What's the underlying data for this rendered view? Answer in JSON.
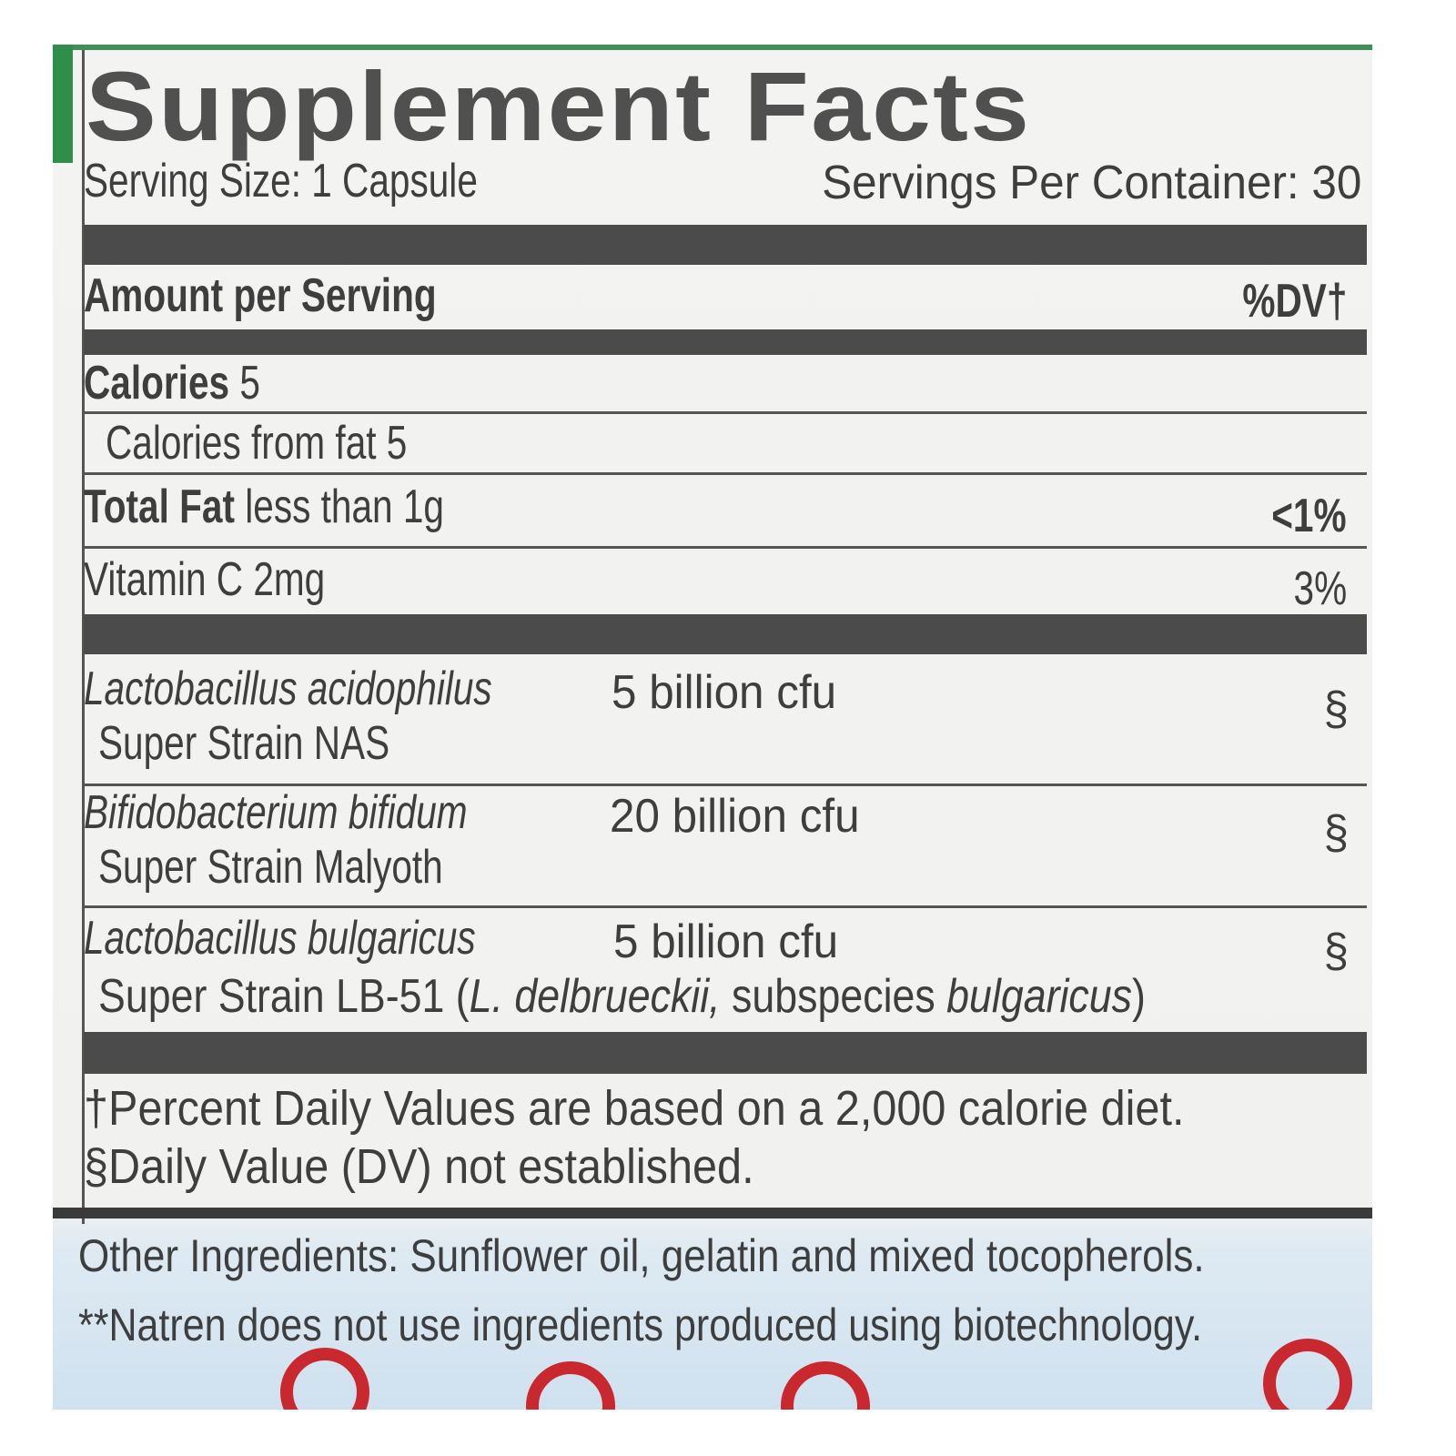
{
  "title": "Supplement Facts",
  "serving_size": "Serving Size: 1 Capsule",
  "servings_per_container": "Servings Per Container: 30",
  "header": {
    "amount_label": "Amount per Serving",
    "dv_label": "%DV†"
  },
  "nutrients": [
    {
      "bold": "Calories",
      "rest": " 5",
      "dv": ""
    },
    {
      "bold": "",
      "rest": "Calories from fat 5",
      "dv": ""
    },
    {
      "bold": "Total Fat",
      "rest": " less than 1g",
      "dv": "<1%"
    },
    {
      "bold": "",
      "rest": "Vitamin C 2mg",
      "dv": "3%"
    }
  ],
  "probiotics": [
    {
      "name": "Lactobacillus acidophilus",
      "strain": "Super Strain NAS",
      "amount": "5 billion cfu",
      "dv": "§"
    },
    {
      "name": "Bifidobacterium bifidum",
      "strain": "Super Strain Malyoth",
      "amount": "20 billion cfu",
      "dv": "§"
    },
    {
      "name": "Lactobacillus bulgaricus",
      "strain": "Super Strain LB-51 (",
      "strain_italic": "L. delbrueckii,",
      "strain_mid": " subspecies ",
      "strain_italic2": "bulgaricus",
      "strain_end": ")",
      "amount": "5 billion cfu",
      "dv": "§"
    }
  ],
  "footnotes": [
    "†Percent Daily Values are based on a 2,000 calorie diet.",
    "§Daily Value (DV) not established."
  ],
  "other_ingredients": "Other Ingredients: Sunflower oil, gelatin and mixed tocopherols.",
  "biotech_note": "**Natren does not use ingredients produced using biotechnology.",
  "colors": {
    "text": "#3e3e3e",
    "bars": "#4b4b4b",
    "green": "#2f8f4a",
    "red": "#c8282e",
    "sky": "#cfe1ef"
  }
}
